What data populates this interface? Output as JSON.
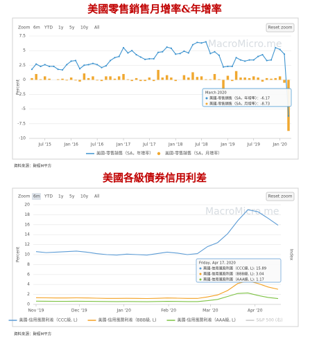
{
  "chart_data": [
    {
      "type": "combo",
      "title": "美國零售銷售月增率&年增率",
      "zoom_label": "Zoom",
      "zoom_buttons": [
        "6m",
        "YTD",
        "1y",
        "5y",
        "10y",
        "All"
      ],
      "reset_label": "Reset zoom",
      "watermark": "MacroMicro.me",
      "ylabel": "Percent",
      "source": "資料來源：財經M平方",
      "x": [
        "2015-04",
        "2015-05",
        "2015-06",
        "2015-07",
        "2015-08",
        "2015-09",
        "2015-10",
        "2015-11",
        "2015-12",
        "2016-01",
        "2016-02",
        "2016-03",
        "2016-04",
        "2016-05",
        "2016-06",
        "2016-07",
        "2016-08",
        "2016-09",
        "2016-10",
        "2016-11",
        "2016-12",
        "2017-01",
        "2017-02",
        "2017-03",
        "2017-04",
        "2017-05",
        "2017-06",
        "2017-07",
        "2017-08",
        "2017-09",
        "2017-10",
        "2017-11",
        "2017-12",
        "2018-01",
        "2018-02",
        "2018-03",
        "2018-04",
        "2018-05",
        "2018-06",
        "2018-07",
        "2018-08",
        "2018-09",
        "2018-10",
        "2018-11",
        "2018-12",
        "2019-01",
        "2019-02",
        "2019-03",
        "2019-04",
        "2019-05",
        "2019-06",
        "2019-07",
        "2019-08",
        "2019-09",
        "2019-10",
        "2019-11",
        "2019-12",
        "2020-01",
        "2020-02",
        "2020-03"
      ],
      "xlim": [
        "2015-04",
        "2020-03"
      ],
      "xticks": [
        {
          "value": "2015-07",
          "label": "Jul '15"
        },
        {
          "value": "2016-01",
          "label": "Jan '16"
        },
        {
          "value": "2016-07",
          "label": "Jul '16"
        },
        {
          "value": "2017-01",
          "label": "Jan '17"
        },
        {
          "value": "2017-07",
          "label": "Jul '17"
        },
        {
          "value": "2018-01",
          "label": "Jan '18"
        },
        {
          "value": "2018-07",
          "label": "Jul '18"
        },
        {
          "value": "2019-01",
          "label": "Jan '19"
        },
        {
          "value": "2019-07",
          "label": "Jul '19"
        },
        {
          "value": "2020-01",
          "label": "Jan '20"
        }
      ],
      "ylim": [
        -10,
        7.5
      ],
      "yticks": [
        -10,
        -7.5,
        -5,
        -2.5,
        0,
        2.5,
        5,
        7.5
      ],
      "grid": true,
      "series": [
        {
          "name": "美國-零售銷售（SA，年增率）",
          "type": "line",
          "color": "#3d93cf",
          "values": [
            1.8,
            2.7,
            2.3,
            2.6,
            2.3,
            2.3,
            1.8,
            1.7,
            2.6,
            3.2,
            3.3,
            1.9,
            2.5,
            2.6,
            2.8,
            2.6,
            2.1,
            2.4,
            3.3,
            3.8,
            4.0,
            5.5,
            4.6,
            5.0,
            4.3,
            3.9,
            3.5,
            3.6,
            3.6,
            4.7,
            4.8,
            5.6,
            5.4,
            4.4,
            4.5,
            4.9,
            4.6,
            6.0,
            6.4,
            6.3,
            6.5,
            4.5,
            4.8,
            4.2,
            2.2,
            2.3,
            2.3,
            3.8,
            3.4,
            3.2,
            3.4,
            3.4,
            4.0,
            4.3,
            3.3,
            3.4,
            5.5,
            5.2,
            4.4,
            -6.17
          ]
        },
        {
          "name": "美國-零售銷售（SA，月增率）",
          "type": "bar",
          "color": "#f0a830",
          "values": [
            0.3,
            1.0,
            0.1,
            0.6,
            0.2,
            0.0,
            0.1,
            0.2,
            -0.1,
            0.4,
            -0.1,
            -0.3,
            1.1,
            0.3,
            0.6,
            -0.1,
            -0.2,
            0.6,
            0.6,
            0.2,
            0.6,
            1.0,
            0.1,
            -0.2,
            0.3,
            -0.2,
            -0.2,
            0.4,
            -0.2,
            1.7,
            0.4,
            0.8,
            0.4,
            -0.2,
            0.0,
            0.8,
            0.4,
            1.3,
            0.5,
            0.6,
            0.1,
            0.1,
            1.0,
            0.1,
            -1.8,
            0.7,
            -0.2,
            1.5,
            0.4,
            0.4,
            0.3,
            0.6,
            0.4,
            -0.3,
            0.3,
            0.2,
            0.3,
            0.6,
            -0.5,
            -8.73
          ]
        }
      ],
      "tooltip": {
        "title": "March 2020",
        "rows": [
          "美國-零售銷售（SA，年增率）：-6.17",
          "美國-零售銷售（SA，月增率）：-8.73"
        ]
      }
    },
    {
      "type": "line",
      "title": "美國各級債券信用利差",
      "zoom_label": "Zoom",
      "zoom_buttons": [
        "6m",
        "YTD",
        "1y",
        "5y",
        "10y",
        "All"
      ],
      "active_zoom": 0,
      "reset_label": "Reset zoom",
      "watermark": "MacroMicro.me",
      "ylabel": "Percent",
      "y2label": "Index",
      "source": "資料來源：財經M平方",
      "x": [
        "2019-11-01",
        "2019-11-08",
        "2019-11-15",
        "2019-11-22",
        "2019-11-29",
        "2019-12-06",
        "2019-12-13",
        "2019-12-20",
        "2019-12-27",
        "2020-01-03",
        "2020-01-10",
        "2020-01-17",
        "2020-01-24",
        "2020-01-31",
        "2020-02-07",
        "2020-02-14",
        "2020-02-21",
        "2020-02-28",
        "2020-03-06",
        "2020-03-13",
        "2020-03-20",
        "2020-03-27",
        "2020-04-03",
        "2020-04-10",
        "2020-04-17"
      ],
      "xlim": [
        "2019-11-01",
        "2020-04-17"
      ],
      "xticks": [
        {
          "value": "2019-11-01",
          "label": "Nov '19"
        },
        {
          "value": "2019-12-01",
          "label": "Dec '19"
        },
        {
          "value": "2020-01-01",
          "label": "Jan '20"
        },
        {
          "value": "2020-02-01",
          "label": "Feb '20"
        },
        {
          "value": "2020-03-01",
          "label": "Mar '20"
        },
        {
          "value": "2020-04-01",
          "label": "Apr '20"
        }
      ],
      "ylim": [
        0,
        20
      ],
      "yticks": [
        0,
        2,
        4,
        6,
        8,
        10,
        12,
        14,
        16,
        18,
        20
      ],
      "grid": true,
      "series": [
        {
          "name": "美國-信用風險利差（CCC級, L)",
          "color": "#5b9bd5",
          "values": [
            10.6,
            10.4,
            10.5,
            10.6,
            10.7,
            10.5,
            10.2,
            10.0,
            9.9,
            10.1,
            10.0,
            9.9,
            10.2,
            10.5,
            10.3,
            10.0,
            10.2,
            11.6,
            12.4,
            14.2,
            16.8,
            19.0,
            18.6,
            17.3,
            15.89
          ]
        },
        {
          "name": "美國-信用風險利差（BBB級, L)",
          "color": "#f4a020",
          "values": [
            1.35,
            1.32,
            1.3,
            1.3,
            1.32,
            1.3,
            1.25,
            1.2,
            1.2,
            1.22,
            1.2,
            1.18,
            1.22,
            1.3,
            1.25,
            1.2,
            1.2,
            1.5,
            1.9,
            2.8,
            4.2,
            4.7,
            4.2,
            3.5,
            3.04
          ]
        },
        {
          "name": "美國-信用風險利差（AAA級, L)",
          "color": "#7cc242",
          "values": [
            0.65,
            0.63,
            0.62,
            0.62,
            0.63,
            0.62,
            0.6,
            0.58,
            0.57,
            0.58,
            0.57,
            0.55,
            0.58,
            0.62,
            0.6,
            0.57,
            0.57,
            0.75,
            1.0,
            1.6,
            2.2,
            2.3,
            1.8,
            1.4,
            1.17
          ]
        }
      ],
      "hidden_series": [
        {
          "name": "S&P 500 (右)",
          "color": "#c8c8c8"
        }
      ],
      "tooltip": {
        "title": "Friday, Apr 17, 2020",
        "rows": [
          "美國-信用風險利差（CCC級, L): 15.89",
          "美國-信用風險利差（BBB級, L): 3.04",
          "美國-信用風險利差（AAA級, L): 1.17"
        ]
      }
    }
  ]
}
